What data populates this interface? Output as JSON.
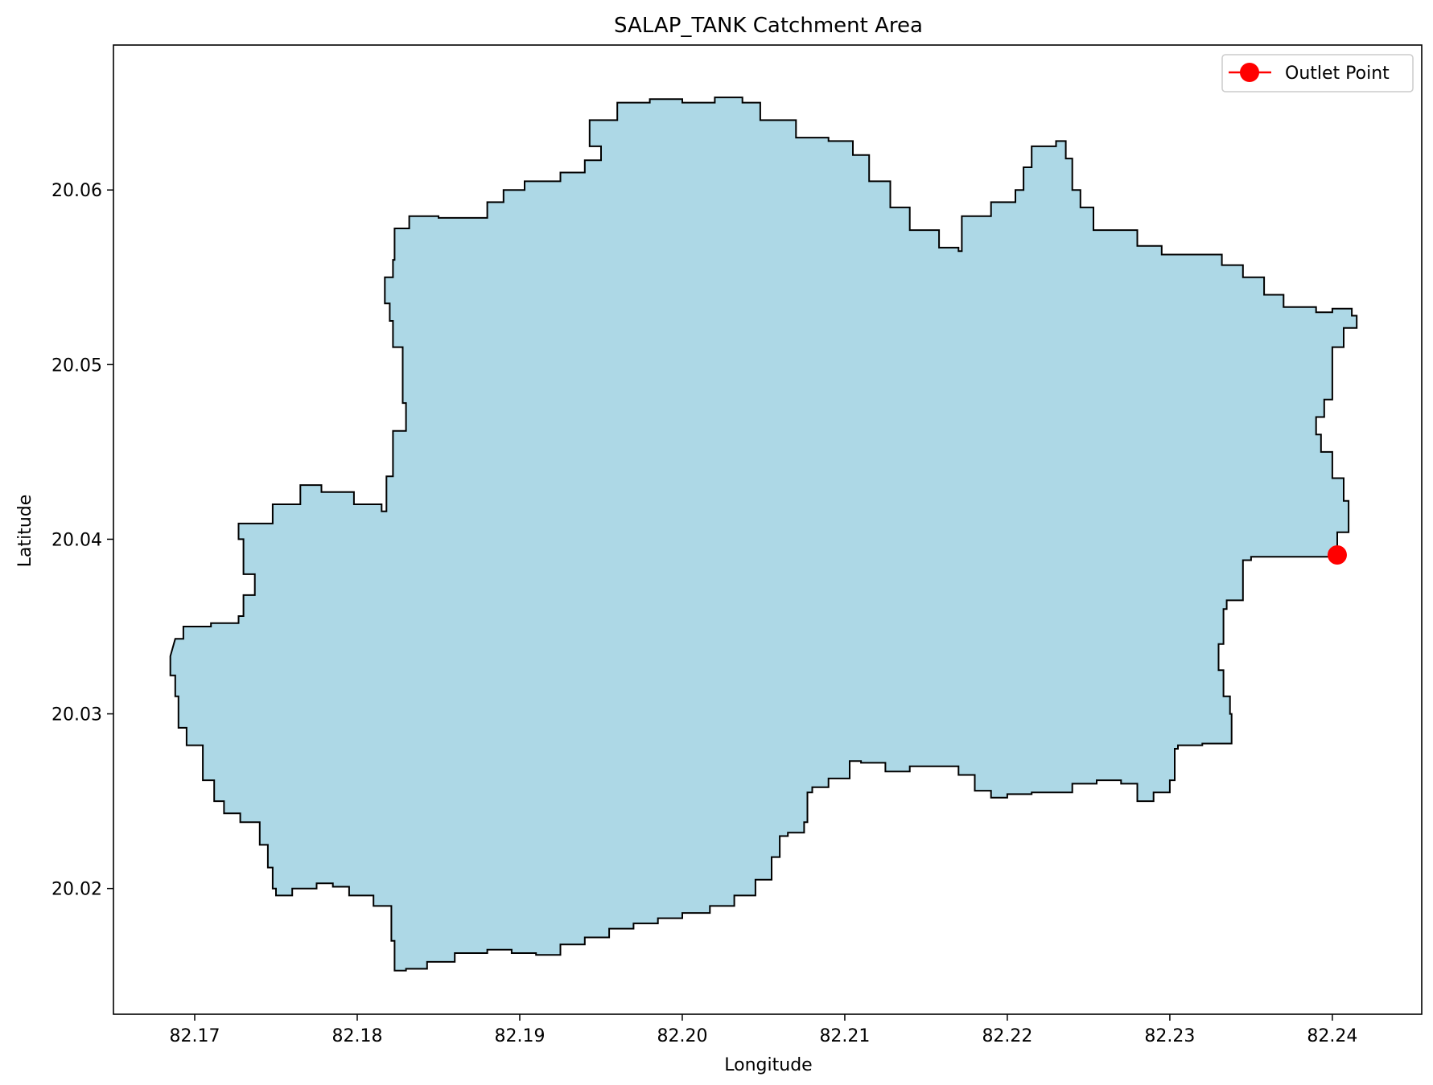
{
  "chart_data": {
    "type": "map",
    "title": "SALAP_TANK Catchment Area",
    "xlabel": "Longitude",
    "ylabel": "Latitude",
    "xlim": [
      82.165,
      82.2455
    ],
    "ylim": [
      20.0128,
      20.0683
    ],
    "x_ticks": [
      "82.17",
      "82.18",
      "82.19",
      "82.20",
      "82.21",
      "82.22",
      "82.23",
      "82.24"
    ],
    "x_tick_values": [
      82.17,
      82.18,
      82.19,
      82.2,
      82.21,
      82.22,
      82.23,
      82.24
    ],
    "y_ticks": [
      "20.02",
      "20.03",
      "20.04",
      "20.05",
      "20.06"
    ],
    "y_tick_values": [
      20.02,
      20.03,
      20.04,
      20.05,
      20.06
    ],
    "grid": false,
    "legend_position": "top-right",
    "legend": [
      {
        "label": "Outlet Point",
        "color": "#ff0000",
        "marker": "circle"
      }
    ],
    "catchment": {
      "fill_color": "#add8e6",
      "edge_color": "#000000",
      "boundary": [
        [
          82.1688,
          20.0343
        ],
        [
          82.1693,
          20.035
        ],
        [
          82.171,
          20.0352
        ],
        [
          82.1727,
          20.0356
        ],
        [
          82.173,
          20.0368
        ],
        [
          82.1737,
          20.038
        ],
        [
          82.173,
          20.04
        ],
        [
          82.1727,
          20.0409
        ],
        [
          82.1748,
          20.042
        ],
        [
          82.1765,
          20.0431
        ],
        [
          82.1778,
          20.0427
        ],
        [
          82.1798,
          20.042
        ],
        [
          82.1815,
          20.0416
        ],
        [
          82.1818,
          20.0436
        ],
        [
          82.1822,
          20.0462
        ],
        [
          82.183,
          20.0478
        ],
        [
          82.1828,
          20.051
        ],
        [
          82.1822,
          20.0525
        ],
        [
          82.182,
          20.0535
        ],
        [
          82.1817,
          20.055
        ],
        [
          82.1822,
          20.056
        ],
        [
          82.1823,
          20.0578
        ],
        [
          82.1832,
          20.0585
        ],
        [
          82.185,
          20.0584
        ],
        [
          82.1865,
          20.0584
        ],
        [
          82.188,
          20.0593
        ],
        [
          82.189,
          20.06
        ],
        [
          82.1903,
          20.0605
        ],
        [
          82.1925,
          20.061
        ],
        [
          82.194,
          20.0617
        ],
        [
          82.195,
          20.0625
        ],
        [
          82.1943,
          20.064
        ],
        [
          82.196,
          20.065
        ],
        [
          82.198,
          20.0652
        ],
        [
          82.2,
          20.065
        ],
        [
          82.202,
          20.0653
        ],
        [
          82.2037,
          20.065
        ],
        [
          82.2048,
          20.064
        ],
        [
          82.207,
          20.063
        ],
        [
          82.209,
          20.0628
        ],
        [
          82.2105,
          20.062
        ],
        [
          82.2115,
          20.0605
        ],
        [
          82.2128,
          20.059
        ],
        [
          82.214,
          20.0577
        ],
        [
          82.2158,
          20.0567
        ],
        [
          82.217,
          20.0565
        ],
        [
          82.2172,
          20.0585
        ],
        [
          82.219,
          20.0593
        ],
        [
          82.2205,
          20.06
        ],
        [
          82.221,
          20.0613
        ],
        [
          82.2215,
          20.0625
        ],
        [
          82.223,
          20.0628
        ],
        [
          82.2236,
          20.0618
        ],
        [
          82.224,
          20.06
        ],
        [
          82.2245,
          20.059
        ],
        [
          82.2253,
          20.0577
        ],
        [
          82.227,
          20.0577
        ],
        [
          82.228,
          20.0568
        ],
        [
          82.2295,
          20.0563
        ],
        [
          82.231,
          20.0563
        ],
        [
          82.2325,
          20.0563
        ],
        [
          82.2332,
          20.0557
        ],
        [
          82.2345,
          20.055
        ],
        [
          82.2358,
          20.054
        ],
        [
          82.237,
          20.0533
        ],
        [
          82.239,
          20.053
        ],
        [
          82.24,
          20.0532
        ],
        [
          82.2412,
          20.0528
        ],
        [
          82.2415,
          20.0521
        ],
        [
          82.2407,
          20.051
        ],
        [
          82.24,
          20.0497
        ],
        [
          82.24,
          20.048
        ],
        [
          82.2395,
          20.047
        ],
        [
          82.239,
          20.046
        ],
        [
          82.2393,
          20.045
        ],
        [
          82.24,
          20.0435
        ],
        [
          82.2407,
          20.0422
        ],
        [
          82.241,
          20.0404
        ],
        [
          82.2403,
          20.039
        ],
        [
          82.239,
          20.039
        ],
        [
          82.2368,
          20.039
        ],
        [
          82.235,
          20.0388
        ],
        [
          82.2345,
          20.0365
        ],
        [
          82.2335,
          20.036
        ],
        [
          82.2333,
          20.034
        ],
        [
          82.233,
          20.0325
        ],
        [
          82.2333,
          20.031
        ],
        [
          82.2337,
          20.03
        ],
        [
          82.2338,
          20.0283
        ],
        [
          82.232,
          20.0282
        ],
        [
          82.2305,
          20.028
        ],
        [
          82.2303,
          20.0262
        ],
        [
          82.23,
          20.0255
        ],
        [
          82.229,
          20.025
        ],
        [
          82.228,
          20.026
        ],
        [
          82.227,
          20.0262
        ],
        [
          82.2255,
          20.026
        ],
        [
          82.224,
          20.0255
        ],
        [
          82.2228,
          20.0255
        ],
        [
          82.2215,
          20.0254
        ],
        [
          82.22,
          20.0252
        ],
        [
          82.219,
          20.0256
        ],
        [
          82.218,
          20.0265
        ],
        [
          82.217,
          20.027
        ],
        [
          82.2155,
          20.027
        ],
        [
          82.214,
          20.0267
        ],
        [
          82.2125,
          20.0272
        ],
        [
          82.211,
          20.0273
        ],
        [
          82.2103,
          20.0263
        ],
        [
          82.209,
          20.0258
        ],
        [
          82.208,
          20.0255
        ],
        [
          82.2077,
          20.0238
        ],
        [
          82.2075,
          20.0232
        ],
        [
          82.2065,
          20.023
        ],
        [
          82.206,
          20.0218
        ],
        [
          82.2055,
          20.0205
        ],
        [
          82.2045,
          20.0196
        ],
        [
          82.2032,
          20.019
        ],
        [
          82.2017,
          20.0186
        ],
        [
          82.2,
          20.0183
        ],
        [
          82.1985,
          20.018
        ],
        [
          82.197,
          20.0177
        ],
        [
          82.1955,
          20.0172
        ],
        [
          82.194,
          20.0168
        ],
        [
          82.1925,
          20.0162
        ],
        [
          82.191,
          20.0163
        ],
        [
          82.1895,
          20.0165
        ],
        [
          82.188,
          20.0163
        ],
        [
          82.186,
          20.0158
        ],
        [
          82.1843,
          20.0154
        ],
        [
          82.183,
          20.0153
        ],
        [
          82.1823,
          20.017
        ],
        [
          82.1821,
          20.019
        ],
        [
          82.181,
          20.0196
        ],
        [
          82.1795,
          20.0201
        ],
        [
          82.1785,
          20.0203
        ],
        [
          82.1775,
          20.02
        ],
        [
          82.176,
          20.0196
        ],
        [
          82.175,
          20.02
        ],
        [
          82.1748,
          20.0212
        ],
        [
          82.1745,
          20.0225
        ],
        [
          82.174,
          20.0238
        ],
        [
          82.1728,
          20.0243
        ],
        [
          82.1718,
          20.025
        ],
        [
          82.1712,
          20.0262
        ],
        [
          82.1705,
          20.0282
        ],
        [
          82.1695,
          20.0292
        ],
        [
          82.169,
          20.031
        ],
        [
          82.1688,
          20.0322
        ],
        [
          82.1685,
          20.0333
        ]
      ]
    },
    "outlet_point": {
      "x": 82.2403,
      "y": 20.0391,
      "color": "#ff0000"
    }
  }
}
